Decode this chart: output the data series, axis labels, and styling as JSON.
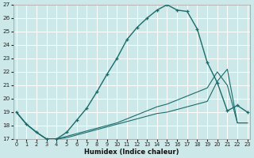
{
  "xlabel": "Humidex (Indice chaleur)",
  "xlim": [
    0,
    23
  ],
  "ylim": [
    17,
    27
  ],
  "yticks": [
    17,
    18,
    19,
    20,
    21,
    22,
    23,
    24,
    25,
    26,
    27
  ],
  "xticks": [
    0,
    1,
    2,
    3,
    4,
    5,
    6,
    7,
    8,
    9,
    10,
    11,
    12,
    13,
    14,
    15,
    16,
    17,
    18,
    19,
    20,
    21,
    22,
    23
  ],
  "bg_color": "#cce8e8",
  "grid_color": "#ffffff",
  "line_color": "#1a6b6b",
  "series1_x": [
    0,
    1,
    2,
    3,
    4,
    5,
    6,
    7,
    8,
    9,
    10,
    11,
    12,
    13,
    14,
    15,
    16,
    17,
    18,
    19,
    20,
    21,
    22,
    23
  ],
  "series1_y": [
    19.0,
    18.1,
    17.5,
    17.0,
    17.0,
    17.5,
    18.4,
    19.3,
    20.5,
    21.8,
    23.0,
    24.4,
    25.3,
    26.0,
    26.6,
    27.0,
    26.6,
    26.5,
    25.2,
    22.7,
    21.2,
    19.1,
    19.5,
    19.0
  ],
  "series2_x": [
    0,
    1,
    2,
    3,
    4,
    5,
    6,
    7,
    8,
    9,
    10,
    11,
    12,
    13,
    14,
    15,
    16,
    17,
    18,
    19,
    20,
    21,
    22,
    23
  ],
  "series2_y": [
    19.0,
    18.1,
    17.5,
    17.0,
    17.0,
    17.2,
    17.4,
    17.6,
    17.8,
    18.0,
    18.2,
    18.5,
    18.8,
    19.1,
    19.4,
    19.6,
    19.9,
    20.2,
    20.5,
    20.8,
    22.0,
    21.0,
    18.2,
    18.2
  ],
  "series3_x": [
    0,
    1,
    2,
    3,
    4,
    5,
    6,
    7,
    8,
    9,
    10,
    11,
    12,
    13,
    14,
    15,
    16,
    17,
    18,
    19,
    20,
    21,
    22,
    23
  ],
  "series3_y": [
    19.0,
    18.1,
    17.5,
    17.0,
    17.0,
    17.1,
    17.3,
    17.5,
    17.7,
    17.9,
    18.1,
    18.3,
    18.5,
    18.7,
    18.9,
    19.0,
    19.2,
    19.4,
    19.6,
    19.8,
    21.3,
    22.2,
    18.2,
    18.2
  ]
}
